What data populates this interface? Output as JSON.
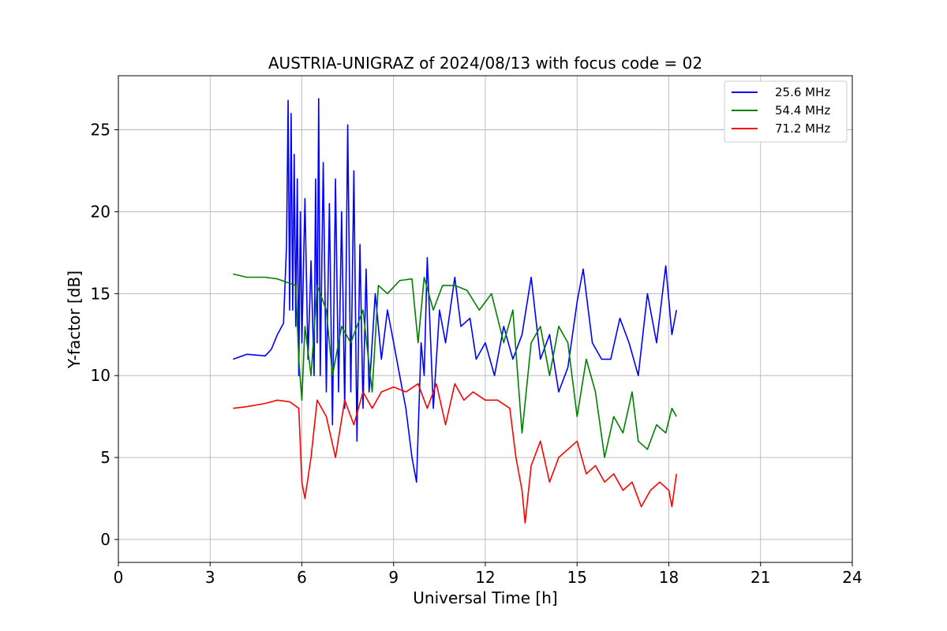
{
  "chart_data": {
    "type": "line",
    "title": "AUSTRIA-UNIGRAZ of 2024/08/13 with focus code = 02",
    "xlabel": "Universal Time [h]",
    "ylabel": "Y-factor [dB]",
    "xlim": [
      0,
      24
    ],
    "ylim": [
      -1.4,
      28.3
    ],
    "xticks": [
      0,
      3,
      6,
      9,
      12,
      15,
      18,
      21,
      24
    ],
    "yticks": [
      0,
      5,
      10,
      15,
      20,
      25
    ],
    "grid": true,
    "legend_position": "top-right",
    "series": [
      {
        "name": "25.6 MHz",
        "color": "#0000ff",
        "points": [
          [
            3.75,
            11.0
          ],
          [
            4.2,
            11.3
          ],
          [
            4.8,
            11.2
          ],
          [
            5.0,
            11.6
          ],
          [
            5.2,
            12.5
          ],
          [
            5.4,
            13.2
          ],
          [
            5.5,
            18.0
          ],
          [
            5.55,
            26.8
          ],
          [
            5.6,
            14.0
          ],
          [
            5.65,
            26.0
          ],
          [
            5.7,
            14.0
          ],
          [
            5.75,
            23.5
          ],
          [
            5.8,
            13.0
          ],
          [
            5.85,
            22.0
          ],
          [
            5.9,
            10.0
          ],
          [
            5.95,
            20.0
          ],
          [
            6.0,
            12.0
          ],
          [
            6.1,
            20.8
          ],
          [
            6.2,
            11.0
          ],
          [
            6.3,
            17.0
          ],
          [
            6.4,
            10.0
          ],
          [
            6.45,
            22.0
          ],
          [
            6.5,
            12.0
          ],
          [
            6.55,
            26.9
          ],
          [
            6.6,
            10.0
          ],
          [
            6.7,
            23.0
          ],
          [
            6.8,
            9.0
          ],
          [
            6.9,
            20.5
          ],
          [
            7.0,
            7.0
          ],
          [
            7.1,
            22.0
          ],
          [
            7.2,
            9.0
          ],
          [
            7.3,
            20.0
          ],
          [
            7.4,
            8.0
          ],
          [
            7.5,
            25.3
          ],
          [
            7.6,
            9.0
          ],
          [
            7.7,
            22.5
          ],
          [
            7.8,
            6.0
          ],
          [
            7.9,
            18.0
          ],
          [
            8.0,
            8.0
          ],
          [
            8.1,
            16.5
          ],
          [
            8.2,
            9.0
          ],
          [
            8.4,
            15.0
          ],
          [
            8.6,
            11.0
          ],
          [
            8.8,
            14.0
          ],
          [
            9.0,
            12.0
          ],
          [
            9.2,
            10.0
          ],
          [
            9.4,
            8.0
          ],
          [
            9.6,
            5.0
          ],
          [
            9.75,
            3.5
          ],
          [
            9.9,
            12.0
          ],
          [
            10.0,
            10.0
          ],
          [
            10.1,
            17.2
          ],
          [
            10.3,
            8.0
          ],
          [
            10.5,
            14.0
          ],
          [
            10.7,
            12.0
          ],
          [
            11.0,
            16.0
          ],
          [
            11.2,
            13.0
          ],
          [
            11.5,
            13.5
          ],
          [
            11.7,
            11.0
          ],
          [
            12.0,
            12.0
          ],
          [
            12.3,
            10.0
          ],
          [
            12.6,
            13.0
          ],
          [
            12.9,
            11.0
          ],
          [
            13.2,
            12.5
          ],
          [
            13.5,
            16.0
          ],
          [
            13.8,
            11.0
          ],
          [
            14.1,
            12.5
          ],
          [
            14.4,
            9.0
          ],
          [
            14.7,
            10.5
          ],
          [
            15.0,
            14.5
          ],
          [
            15.2,
            16.5
          ],
          [
            15.5,
            12.0
          ],
          [
            15.8,
            11.0
          ],
          [
            16.1,
            11.0
          ],
          [
            16.4,
            13.5
          ],
          [
            16.7,
            12.0
          ],
          [
            17.0,
            10.0
          ],
          [
            17.3,
            15.0
          ],
          [
            17.6,
            12.0
          ],
          [
            17.9,
            16.7
          ],
          [
            18.1,
            12.5
          ],
          [
            18.25,
            14.0
          ]
        ]
      },
      {
        "name": "54.4 MHz",
        "color": "#008000",
        "points": [
          [
            3.75,
            16.2
          ],
          [
            4.2,
            16.0
          ],
          [
            4.8,
            16.0
          ],
          [
            5.2,
            15.9
          ],
          [
            5.5,
            15.7
          ],
          [
            5.8,
            15.5
          ],
          [
            5.9,
            11.0
          ],
          [
            6.0,
            8.5
          ],
          [
            6.1,
            13.0
          ],
          [
            6.3,
            10.0
          ],
          [
            6.5,
            15.5
          ],
          [
            6.8,
            14.0
          ],
          [
            7.0,
            10.0
          ],
          [
            7.3,
            13.0
          ],
          [
            7.6,
            12.0
          ],
          [
            8.0,
            14.0
          ],
          [
            8.3,
            9.0
          ],
          [
            8.5,
            15.5
          ],
          [
            8.8,
            15.0
          ],
          [
            9.2,
            15.8
          ],
          [
            9.6,
            15.9
          ],
          [
            9.8,
            12.0
          ],
          [
            10.0,
            16.0
          ],
          [
            10.3,
            14.0
          ],
          [
            10.6,
            15.5
          ],
          [
            11.0,
            15.5
          ],
          [
            11.4,
            15.2
          ],
          [
            11.8,
            14.0
          ],
          [
            12.2,
            15.0
          ],
          [
            12.6,
            12.0
          ],
          [
            12.9,
            14.0
          ],
          [
            13.2,
            6.5
          ],
          [
            13.5,
            12.0
          ],
          [
            13.8,
            13.0
          ],
          [
            14.1,
            10.0
          ],
          [
            14.4,
            13.0
          ],
          [
            14.7,
            12.0
          ],
          [
            15.0,
            7.5
          ],
          [
            15.3,
            11.0
          ],
          [
            15.6,
            9.0
          ],
          [
            15.9,
            5.0
          ],
          [
            16.2,
            7.5
          ],
          [
            16.5,
            6.5
          ],
          [
            16.8,
            9.0
          ],
          [
            17.0,
            6.0
          ],
          [
            17.3,
            5.5
          ],
          [
            17.6,
            7.0
          ],
          [
            17.9,
            6.5
          ],
          [
            18.1,
            8.0
          ],
          [
            18.25,
            7.5
          ]
        ]
      },
      {
        "name": "71.2 MHz",
        "color": "#ff0000",
        "points": [
          [
            3.75,
            8.0
          ],
          [
            4.2,
            8.1
          ],
          [
            4.8,
            8.3
          ],
          [
            5.2,
            8.5
          ],
          [
            5.6,
            8.4
          ],
          [
            5.9,
            8.0
          ],
          [
            6.0,
            3.5
          ],
          [
            6.1,
            2.5
          ],
          [
            6.3,
            5.0
          ],
          [
            6.5,
            8.5
          ],
          [
            6.8,
            7.5
          ],
          [
            7.1,
            5.0
          ],
          [
            7.4,
            8.5
          ],
          [
            7.7,
            7.0
          ],
          [
            8.0,
            9.0
          ],
          [
            8.3,
            8.0
          ],
          [
            8.6,
            9.0
          ],
          [
            9.0,
            9.3
          ],
          [
            9.4,
            9.0
          ],
          [
            9.8,
            9.5
          ],
          [
            10.1,
            8.0
          ],
          [
            10.4,
            9.5
          ],
          [
            10.7,
            7.0
          ],
          [
            11.0,
            9.5
          ],
          [
            11.3,
            8.5
          ],
          [
            11.6,
            9.0
          ],
          [
            12.0,
            8.5
          ],
          [
            12.4,
            8.5
          ],
          [
            12.8,
            8.0
          ],
          [
            13.0,
            5.0
          ],
          [
            13.2,
            3.0
          ],
          [
            13.3,
            1.0
          ],
          [
            13.5,
            4.5
          ],
          [
            13.8,
            6.0
          ],
          [
            14.1,
            3.5
          ],
          [
            14.4,
            5.0
          ],
          [
            14.7,
            5.5
          ],
          [
            15.0,
            6.0
          ],
          [
            15.3,
            4.0
          ],
          [
            15.6,
            4.5
          ],
          [
            15.9,
            3.5
          ],
          [
            16.2,
            4.0
          ],
          [
            16.5,
            3.0
          ],
          [
            16.8,
            3.5
          ],
          [
            17.1,
            2.0
          ],
          [
            17.4,
            3.0
          ],
          [
            17.7,
            3.5
          ],
          [
            18.0,
            3.0
          ],
          [
            18.1,
            2.0
          ],
          [
            18.25,
            4.0
          ]
        ]
      }
    ]
  }
}
